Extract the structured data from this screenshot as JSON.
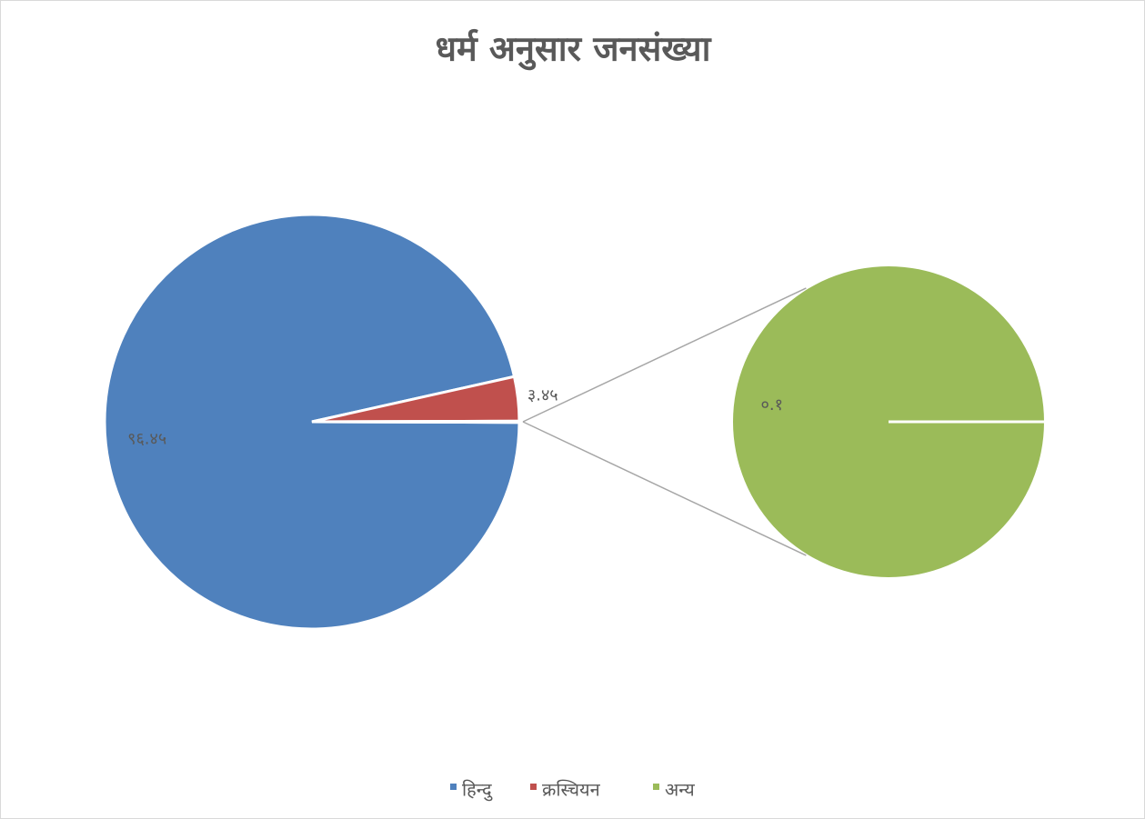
{
  "chart_data": {
    "type": "pie_of_pie",
    "title": "धर्म अनुसार जनसंख्या",
    "categories": [
      "हिन्दु",
      "क्रस्चियन",
      "अन्य"
    ],
    "values": [
      96.45,
      3.45,
      0.1
    ],
    "value_labels": [
      "९६.४५",
      "३.४५",
      "०.१"
    ],
    "colors": [
      "#4f81bd",
      "#c0504d",
      "#9bbb59"
    ],
    "legend": "bottom"
  }
}
